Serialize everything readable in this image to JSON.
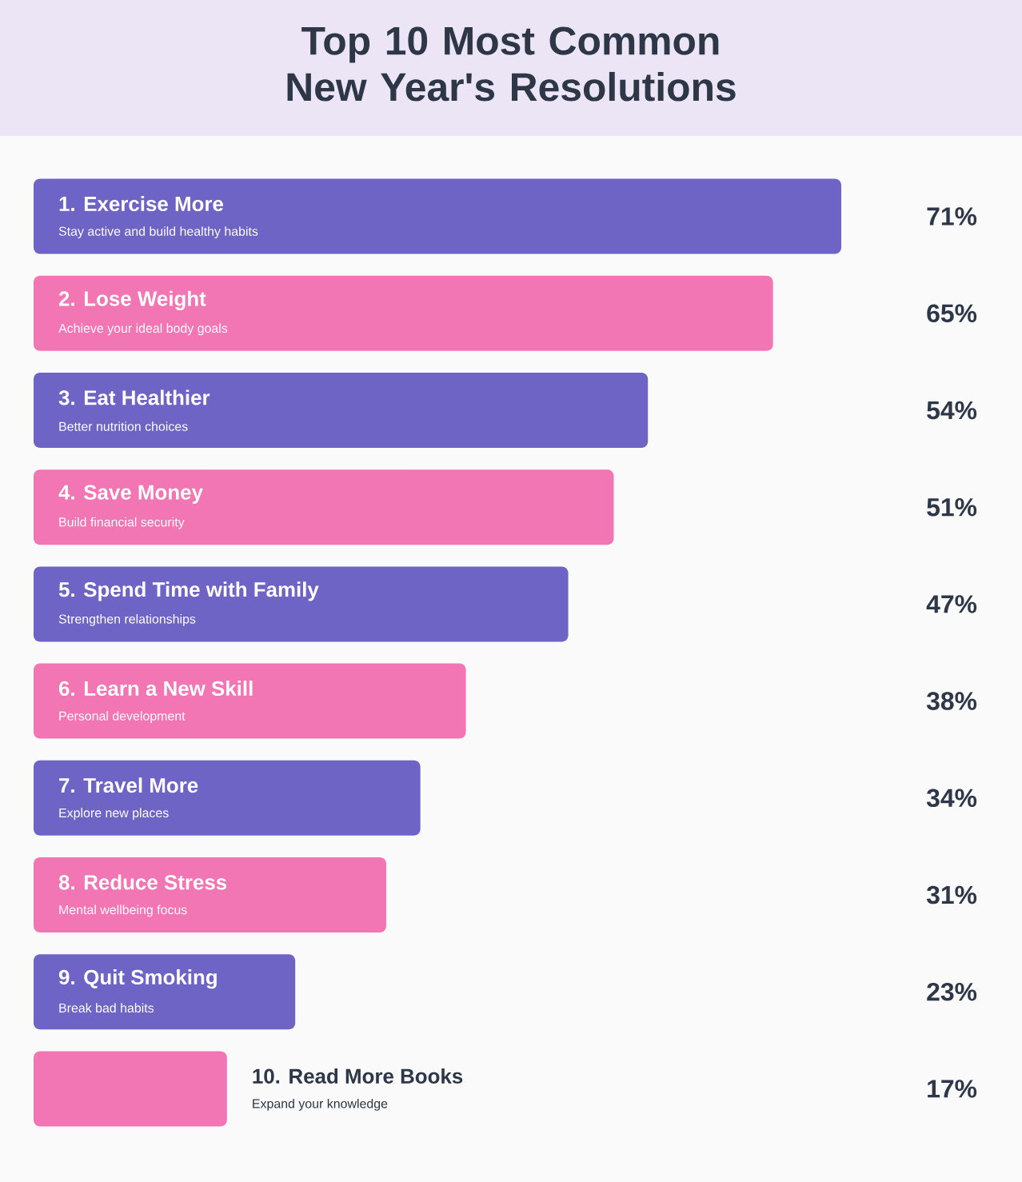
{
  "chart_data": {
    "type": "bar",
    "orientation": "horizontal",
    "title": "Top 10 Most Common New Year's Resolutions",
    "categories": [
      "1. Exercise More",
      "2. Lose Weight",
      "3. Eat Healthier",
      "4. Save Money",
      "5. Spend Time with Family",
      "6. Learn a New Skill",
      "7. Travel More",
      "8. Reduce Stress",
      "9. Quit Smoking",
      "10. Read More Books"
    ],
    "values": [
      71,
      65,
      54,
      51,
      47,
      38,
      34,
      31,
      23,
      17
    ],
    "value_labels": [
      "71%",
      "65%",
      "54%",
      "51%",
      "47%",
      "38%",
      "34%",
      "31%",
      "23%",
      "17%"
    ],
    "colors": [
      "#6e64c6",
      "#f275b4",
      "#6e64c6",
      "#f275b4",
      "#6e64c6",
      "#f275b4",
      "#6e64c6",
      "#f275b4",
      "#6e64c6",
      "#f275b4"
    ],
    "annotations": [
      "Stay active and build healthy habits",
      "Achieve your ideal body goals",
      "Better nutrition choices",
      "Build financial security",
      "Strengthen relationships",
      "Personal development",
      "Explore new places",
      "Mental wellbeing focus",
      "Break bad habits",
      "Expand your knowledge"
    ]
  }
}
